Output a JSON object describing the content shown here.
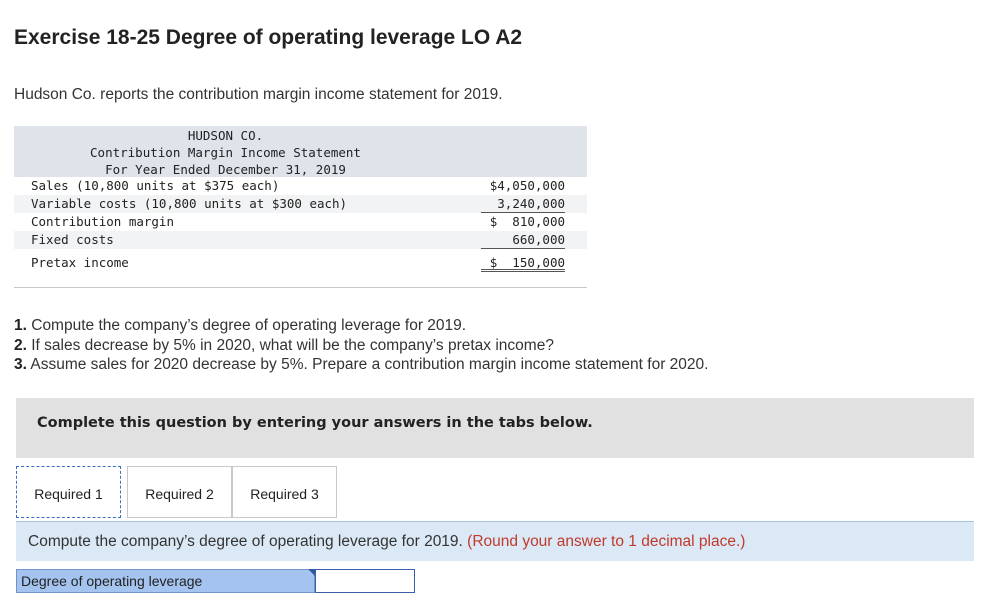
{
  "header": {
    "title": "Exercise 18-25 Degree of operating leverage LO A2",
    "intro": "Hudson Co. reports the contribution margin income statement for 2019."
  },
  "statement": {
    "company": "HUDSON CO.",
    "name": "Contribution Margin Income Statement",
    "period": "For Year Ended December 31, 2019",
    "rows": [
      {
        "label": "Sales (10,800 units at $375 each)",
        "value": "$4,050,000"
      },
      {
        "label": "Variable costs (10,800 units at $300 each)",
        "value": "3,240,000"
      },
      {
        "label": "Contribution margin",
        "value": "$  810,000"
      },
      {
        "label": "Fixed costs",
        "value": "660,000"
      },
      {
        "label": "Pretax income",
        "value": "$  150,000"
      }
    ]
  },
  "questions": [
    {
      "num": "1.",
      "text": " Compute the company’s degree of operating leverage for 2019."
    },
    {
      "num": "2.",
      "text": " If sales decrease by 5% in 2020, what will be the company’s pretax income?"
    },
    {
      "num": "3.",
      "text": " Assume sales for 2020 decrease by 5%. Prepare a contribution margin income statement for 2020."
    }
  ],
  "complete_bar": "Complete this question by entering your answers in the tabs below.",
  "tabs": [
    "Required 1",
    "Required 2",
    "Required 3"
  ],
  "active_tab": "Required 1",
  "instruction": {
    "text": "Compute the company’s degree of operating leverage for 2019.",
    "note": "(Round your answer to 1 decimal place.)"
  },
  "answer": {
    "label": "Degree of operating leverage",
    "value": ""
  },
  "colors": {
    "statement_header_bg": "#dfe3ea",
    "instruction_bg": "#dbe9f6",
    "note_red": "#c0392b",
    "answer_label_bg": "#a4c4ef"
  }
}
